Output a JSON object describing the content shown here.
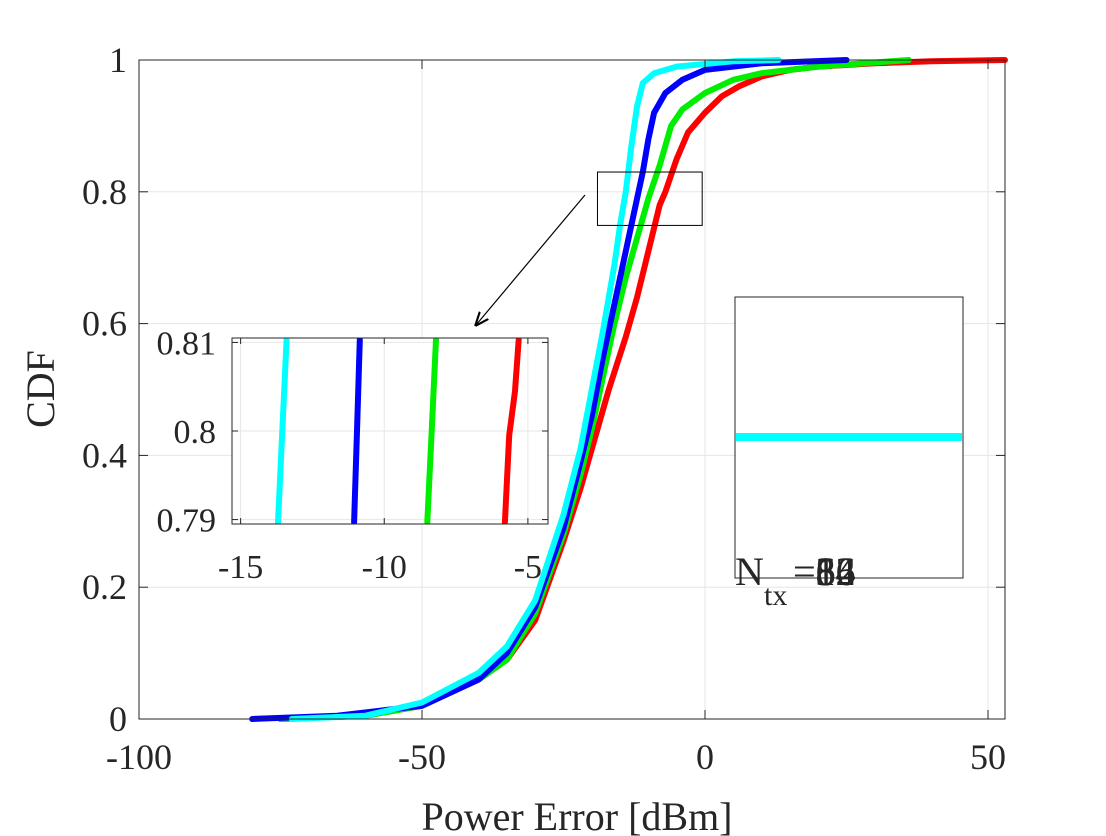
{
  "chart_data": [
    {
      "type": "line",
      "name": "main",
      "xlabel": "Power Error [dBm]",
      "ylabel": "CDF",
      "xlim": [
        -100,
        53
      ],
      "ylim": [
        0,
        1
      ],
      "xticks": [
        -100,
        -50,
        0,
        50
      ],
      "yticks": [
        0,
        0.2,
        0.4,
        0.6,
        0.8,
        1
      ],
      "xtick_labels": [
        "-100",
        "-50",
        "0",
        "50"
      ],
      "ytick_labels": [
        "0",
        "0.2",
        "0.4",
        "0.6",
        "0.8",
        "1"
      ],
      "grid": true,
      "series": [
        {
          "name": "red",
          "color": "#ff0000",
          "points": [
            [
              -75,
              0
            ],
            [
              -60,
              0.005
            ],
            [
              -50,
              0.02
            ],
            [
              -40,
              0.06
            ],
            [
              -35,
              0.09
            ],
            [
              -30,
              0.15
            ],
            [
              -25,
              0.27
            ],
            [
              -22,
              0.35
            ],
            [
              -19,
              0.44
            ],
            [
              -17,
              0.5
            ],
            [
              -14,
              0.58
            ],
            [
              -12,
              0.64
            ],
            [
              -10,
              0.71
            ],
            [
              -8,
              0.78
            ],
            [
              -7,
              0.8
            ],
            [
              -5,
              0.85
            ],
            [
              -3,
              0.89
            ],
            [
              0,
              0.92
            ],
            [
              3,
              0.945
            ],
            [
              6,
              0.96
            ],
            [
              10,
              0.975
            ],
            [
              15,
              0.985
            ],
            [
              20,
              0.99
            ],
            [
              30,
              0.995
            ],
            [
              40,
              0.998
            ],
            [
              53,
              1
            ]
          ]
        },
        {
          "name": "green",
          "color": "#00ee00",
          "points": [
            [
              -75,
              0
            ],
            [
              -60,
              0.005
            ],
            [
              -50,
              0.02
            ],
            [
              -40,
              0.06
            ],
            [
              -35,
              0.09
            ],
            [
              -30,
              0.16
            ],
            [
              -25,
              0.28
            ],
            [
              -22,
              0.37
            ],
            [
              -20,
              0.44
            ],
            [
              -18,
              0.52
            ],
            [
              -16,
              0.6
            ],
            [
              -14,
              0.67
            ],
            [
              -12,
              0.73
            ],
            [
              -10,
              0.79
            ],
            [
              -8,
              0.84
            ],
            [
              -7,
              0.87
            ],
            [
              -6,
              0.9
            ],
            [
              -4,
              0.925
            ],
            [
              0,
              0.95
            ],
            [
              5,
              0.97
            ],
            [
              10,
              0.98
            ],
            [
              20,
              0.99
            ],
            [
              36,
              1
            ]
          ]
        },
        {
          "name": "blue",
          "color": "#0000ff",
          "points": [
            [
              -80,
              0
            ],
            [
              -65,
              0.005
            ],
            [
              -50,
              0.02
            ],
            [
              -40,
              0.06
            ],
            [
              -35,
              0.1
            ],
            [
              -30,
              0.17
            ],
            [
              -25,
              0.29
            ],
            [
              -22,
              0.39
            ],
            [
              -20,
              0.46
            ],
            [
              -18,
              0.55
            ],
            [
              -16,
              0.63
            ],
            [
              -14,
              0.71
            ],
            [
              -12,
              0.79
            ],
            [
              -11,
              0.83
            ],
            [
              -10,
              0.88
            ],
            [
              -9,
              0.92
            ],
            [
              -7,
              0.95
            ],
            [
              -4,
              0.97
            ],
            [
              0,
              0.985
            ],
            [
              10,
              0.995
            ],
            [
              25,
              1
            ]
          ]
        },
        {
          "name": "cyan",
          "color": "#00ffff",
          "points": [
            [
              -73,
              0
            ],
            [
              -60,
              0.005
            ],
            [
              -50,
              0.025
            ],
            [
              -40,
              0.07
            ],
            [
              -35,
              0.11
            ],
            [
              -30,
              0.18
            ],
            [
              -25,
              0.31
            ],
            [
              -22,
              0.41
            ],
            [
              -20,
              0.5
            ],
            [
              -18,
              0.59
            ],
            [
              -16,
              0.69
            ],
            [
              -15,
              0.75
            ],
            [
              -14,
              0.8
            ],
            [
              -13,
              0.87
            ],
            [
              -12,
              0.93
            ],
            [
              -11,
              0.965
            ],
            [
              -9,
              0.98
            ],
            [
              -5,
              0.99
            ],
            [
              5,
              0.998
            ],
            [
              13,
              1
            ]
          ]
        }
      ],
      "zoom_box": {
        "xlim": [
          -19,
          -0.5
        ],
        "ylim": [
          0.749,
          0.83
        ]
      }
    },
    {
      "type": "line",
      "name": "inset",
      "xlim": [
        -15.3,
        -4.3
      ],
      "ylim": [
        0.7895,
        0.8105
      ],
      "xticks": [
        -15,
        -10,
        -5
      ],
      "yticks": [
        0.79,
        0.8,
        0.81
      ],
      "xtick_labels": [
        "-15",
        "-10",
        "-5"
      ],
      "ytick_labels": [
        "0.79",
        "0.8",
        "0.81"
      ],
      "grid": true,
      "series": [
        {
          "name": "red",
          "color": "#ff0000",
          "points": [
            [
              -5.8,
              0.7897
            ],
            [
              -5.72,
              0.795
            ],
            [
              -5.65,
              0.7995
            ],
            [
              -5.45,
              0.8045
            ],
            [
              -5.32,
              0.8103
            ]
          ]
        },
        {
          "name": "green",
          "color": "#00ee00",
          "points": [
            [
              -8.5,
              0.7897
            ],
            [
              -8.35,
              0.8
            ],
            [
              -8.2,
              0.8103
            ]
          ]
        },
        {
          "name": "blue",
          "color": "#0000ff",
          "points": [
            [
              -11.05,
              0.7897
            ],
            [
              -10.95,
              0.8
            ],
            [
              -10.85,
              0.8103
            ]
          ]
        },
        {
          "name": "cyan",
          "color": "#00ffff",
          "points": [
            [
              -13.7,
              0.7897
            ],
            [
              -13.55,
              0.8
            ],
            [
              -13.4,
              0.8103
            ]
          ]
        }
      ]
    }
  ],
  "legend": {
    "entry_text": "N",
    "subscript": "tx",
    "values": [
      "8",
      "16",
      "32",
      "64"
    ],
    "value_prefix": "=",
    "line_color": "#00ffff"
  }
}
